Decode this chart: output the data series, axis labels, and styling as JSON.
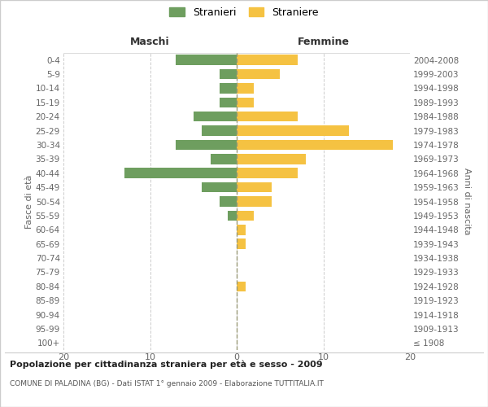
{
  "age_groups": [
    "100+",
    "95-99",
    "90-94",
    "85-89",
    "80-84",
    "75-79",
    "70-74",
    "65-69",
    "60-64",
    "55-59",
    "50-54",
    "45-49",
    "40-44",
    "35-39",
    "30-34",
    "25-29",
    "20-24",
    "15-19",
    "10-14",
    "5-9",
    "0-4"
  ],
  "birth_years": [
    "≤ 1908",
    "1909-1913",
    "1914-1918",
    "1919-1923",
    "1924-1928",
    "1929-1933",
    "1934-1938",
    "1939-1943",
    "1944-1948",
    "1949-1953",
    "1954-1958",
    "1959-1963",
    "1964-1968",
    "1969-1973",
    "1974-1978",
    "1979-1983",
    "1984-1988",
    "1989-1993",
    "1994-1998",
    "1999-2003",
    "2004-2008"
  ],
  "maschi": [
    0,
    0,
    0,
    0,
    0,
    0,
    0,
    0,
    0,
    1,
    2,
    4,
    13,
    3,
    7,
    4,
    5,
    2,
    2,
    2,
    7
  ],
  "femmine": [
    0,
    0,
    0,
    0,
    1,
    0,
    0,
    1,
    1,
    2,
    4,
    4,
    7,
    8,
    18,
    13,
    7,
    2,
    2,
    5,
    7
  ],
  "color_maschi": "#6e9e5f",
  "color_femmine": "#f5c242",
  "title": "Popolazione per cittadinanza straniera per età e sesso - 2009",
  "subtitle": "COMUNE DI PALADINA (BG) - Dati ISTAT 1° gennaio 2009 - Elaborazione TUTTITALIA.IT",
  "ylabel_left": "Fasce di età",
  "ylabel_right": "Anni di nascita",
  "label_maschi": "Maschi",
  "label_femmine": "Femmine",
  "legend_maschi": "Stranieri",
  "legend_femmine": "Straniere",
  "xlim": 20,
  "background_color": "#ffffff",
  "grid_color": "#cccccc",
  "border_color": "#cccccc"
}
